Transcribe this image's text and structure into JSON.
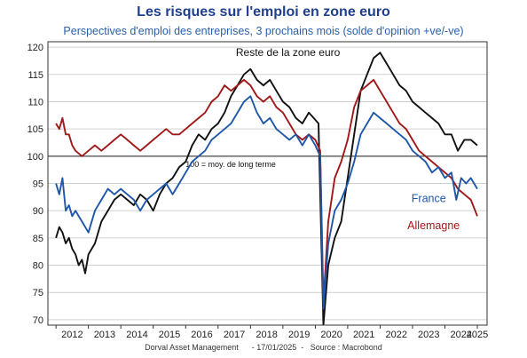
{
  "header": {
    "title": "Les risques sur l'emploi en zone euro",
    "subtitle": "Perspectives d'emploi des entreprises, 3 prochains mois (solde d'opinion +ve/-ve)"
  },
  "footer": {
    "source": "Dorval Asset Management      - 17/01/2025  -   Source : Macrobond"
  },
  "colors": {
    "reste": "#111111",
    "france": "#1f57a8",
    "allemagne": "#a01818",
    "frame": "#333333",
    "grid": "#d0d0d0"
  },
  "chart_data": {
    "type": "line",
    "ylim": [
      69,
      121
    ],
    "yticks": [
      70,
      75,
      80,
      85,
      90,
      95,
      100,
      105,
      110,
      115,
      120
    ],
    "xlim": [
      2011.75,
      2025.3
    ],
    "xticks": [
      2012,
      2013,
      2014,
      2015,
      2016,
      2017,
      2018,
      2019,
      2020,
      2021,
      2022,
      2023,
      2024,
      2025
    ],
    "reference_line": {
      "y": 100,
      "label": "100 = moy. de long terme"
    },
    "series": [
      {
        "name": "Reste de la zone euro",
        "key": "reste",
        "points": [
          [
            2012.0,
            85
          ],
          [
            2012.1,
            87
          ],
          [
            2012.2,
            86
          ],
          [
            2012.3,
            84
          ],
          [
            2012.4,
            85
          ],
          [
            2012.5,
            83
          ],
          [
            2012.6,
            82
          ],
          [
            2012.7,
            80
          ],
          [
            2012.8,
            81
          ],
          [
            2012.9,
            78.5
          ],
          [
            2013.0,
            82
          ],
          [
            2013.2,
            84
          ],
          [
            2013.4,
            88
          ],
          [
            2013.6,
            90
          ],
          [
            2013.8,
            92
          ],
          [
            2014.0,
            93
          ],
          [
            2014.2,
            92
          ],
          [
            2014.4,
            91
          ],
          [
            2014.6,
            93
          ],
          [
            2014.8,
            92
          ],
          [
            2015.0,
            90
          ],
          [
            2015.2,
            93
          ],
          [
            2015.4,
            95
          ],
          [
            2015.6,
            96
          ],
          [
            2015.8,
            98
          ],
          [
            2016.0,
            99
          ],
          [
            2016.2,
            102
          ],
          [
            2016.4,
            104
          ],
          [
            2016.6,
            103
          ],
          [
            2016.8,
            105
          ],
          [
            2017.0,
            106
          ],
          [
            2017.2,
            108
          ],
          [
            2017.4,
            111
          ],
          [
            2017.6,
            113
          ],
          [
            2017.8,
            115
          ],
          [
            2018.0,
            116
          ],
          [
            2018.2,
            114
          ],
          [
            2018.4,
            113
          ],
          [
            2018.6,
            114
          ],
          [
            2018.8,
            112
          ],
          [
            2019.0,
            110
          ],
          [
            2019.2,
            109
          ],
          [
            2019.4,
            107
          ],
          [
            2019.6,
            106
          ],
          [
            2019.8,
            108
          ],
          [
            2019.95,
            107
          ],
          [
            2020.1,
            106
          ],
          [
            2020.25,
            69
          ],
          [
            2020.4,
            80
          ],
          [
            2020.6,
            85
          ],
          [
            2020.8,
            88
          ],
          [
            2021.0,
            96
          ],
          [
            2021.2,
            104
          ],
          [
            2021.4,
            112
          ],
          [
            2021.6,
            115
          ],
          [
            2021.8,
            118
          ],
          [
            2022.0,
            119
          ],
          [
            2022.2,
            117
          ],
          [
            2022.4,
            115
          ],
          [
            2022.6,
            113
          ],
          [
            2022.8,
            112
          ],
          [
            2023.0,
            110
          ],
          [
            2023.2,
            109
          ],
          [
            2023.4,
            108
          ],
          [
            2023.6,
            107
          ],
          [
            2023.8,
            106
          ],
          [
            2024.0,
            104
          ],
          [
            2024.2,
            104
          ],
          [
            2024.4,
            101
          ],
          [
            2024.6,
            103
          ],
          [
            2024.8,
            103
          ],
          [
            2025.0,
            102
          ]
        ]
      },
      {
        "name": "France",
        "key": "france",
        "points": [
          [
            2012.0,
            95
          ],
          [
            2012.1,
            93
          ],
          [
            2012.2,
            96
          ],
          [
            2012.3,
            90
          ],
          [
            2012.4,
            91
          ],
          [
            2012.5,
            89
          ],
          [
            2012.6,
            90
          ],
          [
            2012.8,
            88
          ],
          [
            2013.0,
            86
          ],
          [
            2013.2,
            90
          ],
          [
            2013.4,
            92
          ],
          [
            2013.6,
            94
          ],
          [
            2013.8,
            93
          ],
          [
            2014.0,
            94
          ],
          [
            2014.2,
            93
          ],
          [
            2014.4,
            92
          ],
          [
            2014.6,
            90
          ],
          [
            2014.8,
            92
          ],
          [
            2015.0,
            93
          ],
          [
            2015.2,
            94
          ],
          [
            2015.4,
            95
          ],
          [
            2015.6,
            93
          ],
          [
            2015.8,
            95
          ],
          [
            2016.0,
            97
          ],
          [
            2016.2,
            99
          ],
          [
            2016.4,
            100
          ],
          [
            2016.6,
            101
          ],
          [
            2016.8,
            103
          ],
          [
            2017.0,
            104
          ],
          [
            2017.2,
            105
          ],
          [
            2017.4,
            106
          ],
          [
            2017.6,
            108
          ],
          [
            2017.8,
            110
          ],
          [
            2018.0,
            111
          ],
          [
            2018.2,
            108
          ],
          [
            2018.4,
            106
          ],
          [
            2018.6,
            107
          ],
          [
            2018.8,
            105
          ],
          [
            2019.0,
            104
          ],
          [
            2019.2,
            103
          ],
          [
            2019.4,
            104
          ],
          [
            2019.6,
            102
          ],
          [
            2019.8,
            104
          ],
          [
            2020.0,
            102
          ],
          [
            2020.15,
            100
          ],
          [
            2020.25,
            72
          ],
          [
            2020.4,
            84
          ],
          [
            2020.6,
            90
          ],
          [
            2020.8,
            92
          ],
          [
            2021.0,
            95
          ],
          [
            2021.2,
            99
          ],
          [
            2021.4,
            104
          ],
          [
            2021.6,
            106
          ],
          [
            2021.8,
            108
          ],
          [
            2022.0,
            107
          ],
          [
            2022.2,
            106
          ],
          [
            2022.4,
            105
          ],
          [
            2022.6,
            104
          ],
          [
            2022.8,
            103
          ],
          [
            2023.0,
            101
          ],
          [
            2023.2,
            100
          ],
          [
            2023.4,
            99
          ],
          [
            2023.6,
            97
          ],
          [
            2023.8,
            98
          ],
          [
            2024.0,
            96
          ],
          [
            2024.2,
            97
          ],
          [
            2024.35,
            92
          ],
          [
            2024.5,
            96
          ],
          [
            2024.65,
            95
          ],
          [
            2024.8,
            96
          ],
          [
            2025.0,
            94
          ]
        ]
      },
      {
        "name": "Allemagne",
        "key": "allemagne",
        "points": [
          [
            2012.0,
            106
          ],
          [
            2012.1,
            105
          ],
          [
            2012.2,
            107
          ],
          [
            2012.3,
            104
          ],
          [
            2012.4,
            104
          ],
          [
            2012.5,
            102
          ],
          [
            2012.6,
            101
          ],
          [
            2012.8,
            100
          ],
          [
            2013.0,
            101
          ],
          [
            2013.2,
            102
          ],
          [
            2013.4,
            101
          ],
          [
            2013.6,
            102
          ],
          [
            2013.8,
            103
          ],
          [
            2014.0,
            104
          ],
          [
            2014.2,
            103
          ],
          [
            2014.4,
            102
          ],
          [
            2014.6,
            101
          ],
          [
            2014.8,
            102
          ],
          [
            2015.0,
            103
          ],
          [
            2015.2,
            104
          ],
          [
            2015.4,
            105
          ],
          [
            2015.6,
            104
          ],
          [
            2015.8,
            104
          ],
          [
            2016.0,
            105
          ],
          [
            2016.2,
            106
          ],
          [
            2016.4,
            107
          ],
          [
            2016.6,
            108
          ],
          [
            2016.8,
            110
          ],
          [
            2017.0,
            111
          ],
          [
            2017.2,
            113
          ],
          [
            2017.4,
            112
          ],
          [
            2017.6,
            113
          ],
          [
            2017.8,
            114
          ],
          [
            2018.0,
            113
          ],
          [
            2018.2,
            111
          ],
          [
            2018.4,
            110
          ],
          [
            2018.6,
            111
          ],
          [
            2018.8,
            109
          ],
          [
            2019.0,
            108
          ],
          [
            2019.2,
            106
          ],
          [
            2019.4,
            104
          ],
          [
            2019.6,
            103
          ],
          [
            2019.8,
            104
          ],
          [
            2020.0,
            103
          ],
          [
            2020.15,
            101
          ],
          [
            2020.25,
            73
          ],
          [
            2020.4,
            88
          ],
          [
            2020.6,
            96
          ],
          [
            2020.8,
            99
          ],
          [
            2021.0,
            103
          ],
          [
            2021.2,
            109
          ],
          [
            2021.4,
            112
          ],
          [
            2021.6,
            113
          ],
          [
            2021.8,
            114
          ],
          [
            2022.0,
            112
          ],
          [
            2022.2,
            110
          ],
          [
            2022.4,
            108
          ],
          [
            2022.6,
            106
          ],
          [
            2022.8,
            105
          ],
          [
            2023.0,
            103
          ],
          [
            2023.2,
            101
          ],
          [
            2023.4,
            100
          ],
          [
            2023.6,
            99
          ],
          [
            2023.8,
            98
          ],
          [
            2024.0,
            97
          ],
          [
            2024.2,
            96
          ],
          [
            2024.4,
            94
          ],
          [
            2024.6,
            93
          ],
          [
            2024.8,
            92
          ],
          [
            2025.0,
            89
          ]
        ]
      }
    ],
    "annotations": [
      {
        "text": "Reste de la zone euro",
        "series": "reste"
      },
      {
        "text": "France",
        "series": "france"
      },
      {
        "text": "Allemagne",
        "series": "allemagne"
      }
    ]
  }
}
